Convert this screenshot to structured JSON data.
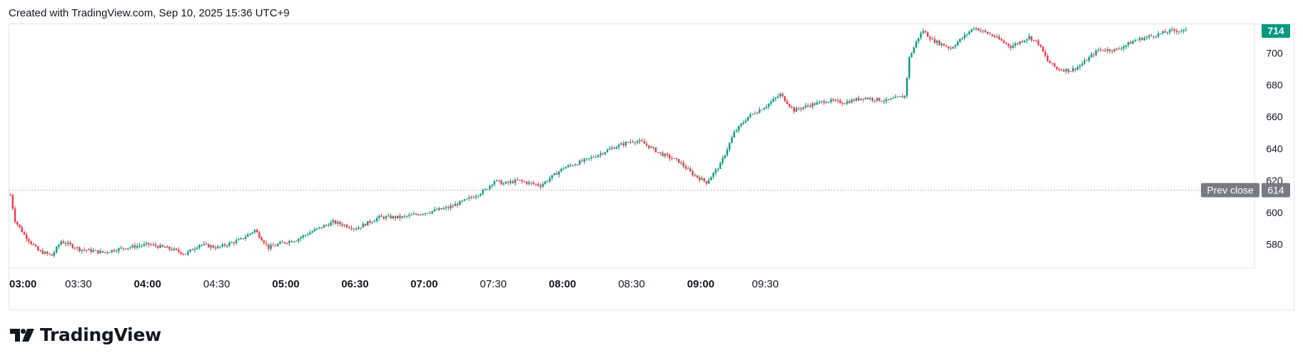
{
  "header": {
    "text": "Created with TradingView.com, Sep 10, 2025 15:36 UTC+9"
  },
  "brand": {
    "name": "TradingView"
  },
  "colors": {
    "up": "#089981",
    "down": "#f23645",
    "prev_close": "#787b86",
    "grid": "#e0e3eb",
    "text": "#131722"
  },
  "chart_data": {
    "type": "candlestick",
    "interval_minutes": 1,
    "y_axis": {
      "ticks": [
        580,
        600,
        620,
        640,
        660,
        680,
        700
      ],
      "range": [
        566,
        718
      ]
    },
    "x_axis": {
      "ticks": [
        {
          "label": "03:00",
          "bold": true
        },
        {
          "label": "03:30",
          "bold": false
        },
        {
          "label": "04:00",
          "bold": true
        },
        {
          "label": "04:30",
          "bold": false
        },
        {
          "label": "05:00",
          "bold": true
        },
        {
          "label": "06:30",
          "bold": true
        },
        {
          "label": "07:00",
          "bold": true
        },
        {
          "label": "07:30",
          "bold": false
        },
        {
          "label": "08:00",
          "bold": true
        },
        {
          "label": "08:30",
          "bold": false
        },
        {
          "label": "09:00",
          "bold": true
        },
        {
          "label": "09:30",
          "bold": false
        }
      ]
    },
    "last_price": {
      "value": 714,
      "label": "714"
    },
    "prev_close": {
      "value": 614,
      "label": "Prev close",
      "value_label": "614"
    },
    "anchors": [
      [
        0,
        611
      ],
      [
        2,
        595
      ],
      [
        6,
        586
      ],
      [
        12,
        576
      ],
      [
        18,
        573
      ],
      [
        22,
        582
      ],
      [
        30,
        577
      ],
      [
        40,
        575
      ],
      [
        50,
        578
      ],
      [
        60,
        580
      ],
      [
        70,
        577
      ],
      [
        76,
        574
      ],
      [
        82,
        580
      ],
      [
        90,
        578
      ],
      [
        100,
        583
      ],
      [
        106,
        589
      ],
      [
        112,
        578
      ],
      [
        118,
        581
      ],
      [
        124,
        583
      ],
      [
        132,
        589
      ],
      [
        140,
        594
      ],
      [
        150,
        590
      ],
      [
        160,
        597
      ],
      [
        170,
        597
      ],
      [
        180,
        600
      ],
      [
        190,
        603
      ],
      [
        198,
        608
      ],
      [
        206,
        614
      ],
      [
        210,
        620
      ],
      [
        214,
        618
      ],
      [
        220,
        620
      ],
      [
        230,
        617
      ],
      [
        240,
        628
      ],
      [
        250,
        633
      ],
      [
        262,
        641
      ],
      [
        270,
        645
      ],
      [
        274,
        644
      ],
      [
        282,
        637
      ],
      [
        290,
        632
      ],
      [
        296,
        624
      ],
      [
        302,
        619
      ],
      [
        308,
        630
      ],
      [
        314,
        650
      ],
      [
        320,
        660
      ],
      [
        328,
        667
      ],
      [
        334,
        674
      ],
      [
        340,
        664
      ],
      [
        346,
        667
      ],
      [
        354,
        670
      ],
      [
        362,
        669
      ],
      [
        370,
        672
      ],
      [
        380,
        670
      ],
      [
        388,
        673
      ],
      [
        390,
        697
      ],
      [
        394,
        710
      ],
      [
        396,
        714
      ],
      [
        400,
        708
      ],
      [
        408,
        703
      ],
      [
        418,
        716
      ],
      [
        426,
        711
      ],
      [
        434,
        704
      ],
      [
        442,
        710
      ],
      [
        446,
        706
      ],
      [
        450,
        695
      ],
      [
        454,
        690
      ],
      [
        460,
        689
      ],
      [
        464,
        692
      ],
      [
        472,
        702
      ],
      [
        480,
        702
      ],
      [
        488,
        708
      ],
      [
        496,
        711
      ],
      [
        504,
        714
      ],
      [
        510,
        714
      ]
    ]
  }
}
